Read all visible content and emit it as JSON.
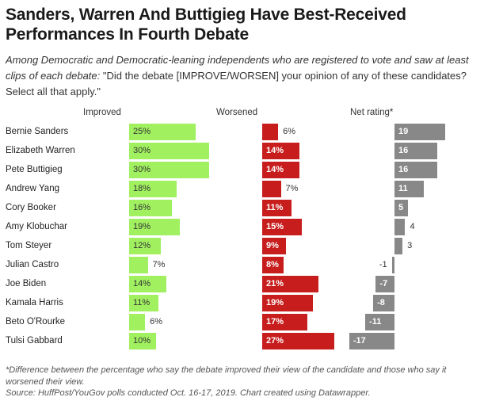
{
  "title": "Sanders, Warren And Buttigieg Have Best-Received Performances In Fourth Debate",
  "subtitle_italic": "Among Democratic and Democratic-leaning independents who are registered to vote and saw at least clips of each debate:",
  "subtitle_plain": " \"Did the debate [IMPROVE/WORSEN] your opinion of any of these candidates? Select all that apply.\"",
  "footnote": "*Difference between the percentage who say the debate improved their view of the candidate and those who say it worsened their view.",
  "source": "Source: HuffPost/YouGov polls conducted Oct. 16-17, 2019. Chart created using Datawrapper.",
  "colors": {
    "improved": "#a0f060",
    "worsened": "#c71e1d",
    "net": "#888888"
  },
  "chart_data": {
    "type": "bar",
    "categories": [
      "Bernie Sanders",
      "Elizabeth Warren",
      "Pete Buttigieg",
      "Andrew Yang",
      "Cory Booker",
      "Amy Klobuchar",
      "Tom Steyer",
      "Julian Castro",
      "Joe Biden",
      "Kamala Harris",
      "Beto O'Rourke",
      "Tulsi Gabbard"
    ],
    "series": [
      {
        "name": "Improved",
        "values": [
          25,
          30,
          30,
          18,
          16,
          19,
          12,
          7,
          14,
          11,
          6,
          10
        ],
        "suffix": "%"
      },
      {
        "name": "Worsened",
        "values": [
          6,
          14,
          14,
          7,
          11,
          15,
          9,
          8,
          21,
          19,
          17,
          27
        ],
        "suffix": "%"
      },
      {
        "name": "Net rating*",
        "values": [
          19,
          16,
          16,
          11,
          5,
          4,
          3,
          -1,
          -7,
          -8,
          -11,
          -17
        ],
        "suffix": ""
      }
    ]
  }
}
